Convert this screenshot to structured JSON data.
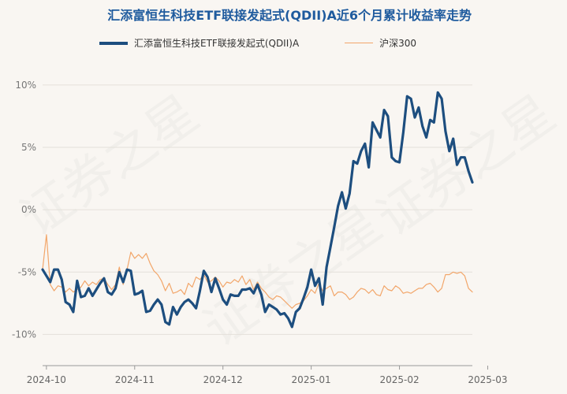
{
  "title": "汇添富恒生科技ETF联接发起式(QDII)A近6个月累计收益率走势",
  "legend": {
    "series1": "汇添富恒生科技ETF联接发起式(QDII)A",
    "series2": "沪深300"
  },
  "watermark": "证券之星",
  "colors": {
    "series1": "#1d4e7f",
    "series2": "#f2a66a",
    "title": "#1f5b9e",
    "background": "#f9f6f2"
  },
  "chart_data": {
    "type": "line",
    "ylim": [
      -12.5,
      10.5
    ],
    "yticks": [
      10,
      5,
      0,
      -5,
      -10
    ],
    "ytick_labels": [
      "10%",
      "5%",
      "0%",
      "-5%",
      "-10%"
    ],
    "xtick_labels": [
      "2024-10",
      "2024-11",
      "2024-12",
      "2025-01",
      "2025-02",
      "2025-03"
    ],
    "xtick_index": [
      1,
      24,
      47,
      70,
      93,
      116
    ],
    "grid": "horizontal",
    "legend_position": "top",
    "series": [
      {
        "name": "汇添富恒生科技ETF联接发起式(QDII)A",
        "values": [
          -4.8,
          -5.3,
          -5.8,
          -4.8,
          -4.8,
          -5.6,
          -7.4,
          -7.6,
          -8.2,
          -5.7,
          -7.0,
          -6.9,
          -6.3,
          -6.9,
          -6.4,
          -5.9,
          -5.5,
          -6.6,
          -6.8,
          -6.3,
          -5.0,
          -5.8,
          -4.8,
          -4.9,
          -6.8,
          -6.7,
          -6.5,
          -8.2,
          -8.1,
          -7.6,
          -7.2,
          -7.6,
          -9.0,
          -9.2,
          -7.8,
          -8.4,
          -7.8,
          -7.4,
          -7.2,
          -7.5,
          -7.9,
          -6.5,
          -4.9,
          -5.4,
          -6.6,
          -5.5,
          -6.3,
          -7.2,
          -7.6,
          -6.8,
          -6.9,
          -6.9,
          -6.4,
          -6.4,
          -6.3,
          -6.7,
          -6.0,
          -6.8,
          -8.2,
          -7.6,
          -7.8,
          -8.0,
          -8.4,
          -8.3,
          -8.7,
          -9.4,
          -8.2,
          -7.9,
          -7.1,
          -6.2,
          -4.8,
          -6.1,
          -5.5,
          -7.6,
          -4.6,
          -3.0,
          -1.4,
          0.3,
          1.4,
          0.1,
          1.3,
          3.9,
          3.7,
          4.7,
          5.3,
          3.4,
          7.0,
          6.4,
          5.8,
          8.0,
          7.5,
          4.2,
          3.9,
          3.8,
          6.2,
          9.1,
          8.9,
          7.4,
          8.2,
          6.7,
          5.8,
          7.2,
          7.0,
          9.4,
          8.9,
          6.3,
          4.7,
          5.7,
          3.6,
          4.2,
          4.2,
          3.1,
          2.2
        ],
        "color": "#1d4e7f"
      },
      {
        "name": "沪深300",
        "values": [
          -4.8,
          -2.0,
          -6.0,
          -6.5,
          -6.1,
          -6.2,
          -6.6,
          -6.3,
          -6.6,
          -6.4,
          -6.2,
          -5.7,
          -6.1,
          -5.8,
          -6.0,
          -5.6,
          -5.5,
          -6.0,
          -6.4,
          -6.0,
          -4.6,
          -6.0,
          -4.8,
          -3.4,
          -3.9,
          -3.6,
          -3.9,
          -3.5,
          -4.3,
          -4.9,
          -5.2,
          -5.7,
          -6.5,
          -5.9,
          -6.7,
          -6.6,
          -6.4,
          -6.8,
          -5.9,
          -6.2,
          -5.4,
          -5.6,
          -5.2,
          -5.8,
          -5.7,
          -5.4,
          -5.7,
          -6.2,
          -5.8,
          -5.9,
          -5.6,
          -5.8,
          -5.3,
          -6.0,
          -5.6,
          -6.4,
          -5.8,
          -6.3,
          -6.6,
          -7.0,
          -7.2,
          -6.9,
          -7.0,
          -7.3,
          -7.6,
          -7.9,
          -7.6,
          -7.5,
          -7.3,
          -6.9,
          -6.4,
          -6.7,
          -5.9,
          -6.5,
          -6.3,
          -6.1,
          -6.9,
          -6.6,
          -6.6,
          -6.8,
          -7.2,
          -7.0,
          -6.6,
          -6.3,
          -6.4,
          -6.7,
          -6.4,
          -6.8,
          -6.9,
          -6.1,
          -6.4,
          -6.5,
          -6.1,
          -6.3,
          -6.7,
          -6.6,
          -6.7,
          -6.5,
          -6.3,
          -6.3,
          -6.0,
          -5.9,
          -6.2,
          -6.6,
          -6.3,
          -5.2,
          -5.2,
          -5.0,
          -5.1,
          -5.0,
          -5.3,
          -6.3,
          -6.6
        ],
        "color": "#f2a66a"
      }
    ]
  }
}
